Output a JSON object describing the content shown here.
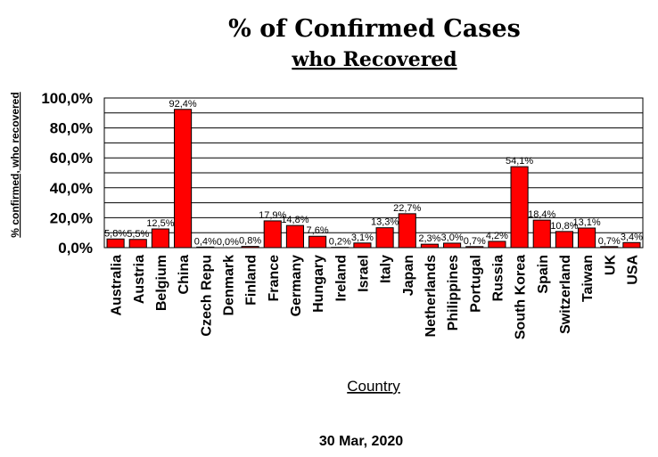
{
  "chart_data": {
    "type": "bar",
    "title": "% of Confirmed Cases",
    "subtitle": "who Recovered",
    "xlabel": "Country",
    "ylabel": "% confirmed, who recovered",
    "footer": "30 Mar, 2020",
    "ylim": [
      0,
      100
    ],
    "yticks": [
      "0,0%",
      "20,0%",
      "40,0%",
      "60,0%",
      "80,0%",
      "100,0%"
    ],
    "grid": true,
    "bar_color": "#ff0000",
    "categories": [
      "Australia",
      "Austria",
      "Belgium",
      "China",
      "Czech Repu",
      "Denmark",
      "Finland",
      "France",
      "Germany",
      "Hungary",
      "Ireland",
      "Israel",
      "Italy",
      "Japan",
      "Netherlands",
      "Philippines",
      "Portugal",
      "Russia",
      "South Korea",
      "Spain",
      "Switzerland",
      "Taiwan",
      "UK",
      "USA"
    ],
    "values": [
      5.8,
      5.5,
      12.5,
      92.4,
      0.4,
      0.0,
      0.8,
      17.9,
      14.8,
      7.6,
      0.2,
      3.1,
      13.3,
      22.7,
      2.3,
      3.0,
      0.7,
      4.2,
      54.1,
      18.4,
      10.8,
      13.1,
      0.7,
      3.4
    ],
    "value_labels": [
      "5,8%",
      "5,5%",
      "12,5%",
      "92,4%",
      "0,4%",
      "0,0%",
      "0,8%",
      "17,9%",
      "14,8%",
      "7,6%",
      "0,2%",
      "3,1%",
      "13,3%",
      "22,7%",
      "2,3%",
      "3,0%",
      "0,7%",
      "4,2%",
      "54,1%",
      "18,4%",
      "10,8%",
      "13,1%",
      "0,7%",
      "3,4%"
    ]
  }
}
